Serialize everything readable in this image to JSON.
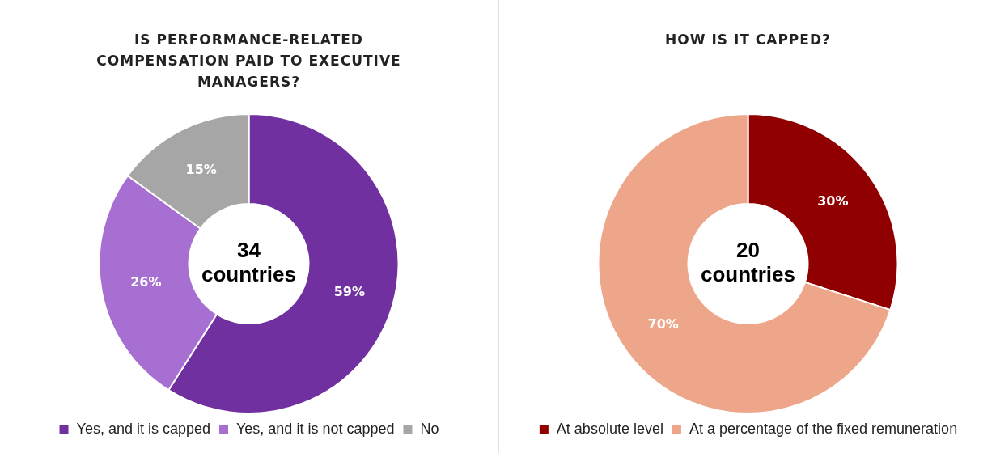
{
  "chart_data": [
    {
      "type": "donut",
      "title": "IS PERFORMANCE-RELATED COMPENSATION PAID TO EXECUTIVE MANAGERS?",
      "categories": [
        "Yes, and it is capped",
        "Yes, and it is not capped",
        "No"
      ],
      "values": [
        59,
        26,
        15
      ],
      "value_labels": [
        "59%",
        "26%",
        "15%"
      ],
      "colors": [
        "#7030a0",
        "#a66fd1",
        "#a6a6a6"
      ],
      "legend": "bottom",
      "annotations": [
        "34 countries"
      ]
    },
    {
      "type": "donut",
      "title": "HOW IS IT CAPPED?",
      "categories": [
        "At absolute level",
        "At a percentage of the fixed remuneration"
      ],
      "values": [
        30,
        70
      ],
      "value_labels": [
        "30%",
        "70%"
      ],
      "colors": [
        "#900000",
        "#eda68a"
      ],
      "legend": "bottom",
      "annotations": [
        "20 countries"
      ]
    }
  ]
}
